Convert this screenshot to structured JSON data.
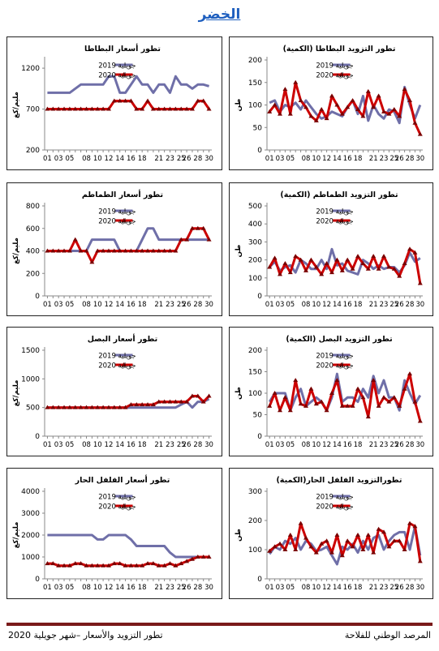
{
  "page": {
    "title": "الخضر",
    "footer_left": "تطور التزويد والأسعار –شهر جويلية 2020",
    "footer_right": "المرصد الوطني للفلاحة"
  },
  "colors": {
    "s2019": "#6f6fa8",
    "s2020": "#cc0000",
    "marker2020": "#7a0000"
  },
  "chart_data": [
    {
      "id": "potato-supply",
      "type": "line",
      "title": "تطور التزويد البطاطا (الكمية)",
      "ylabel": "طن",
      "ylim": [
        0,
        200
      ],
      "yticks": [
        0,
        50,
        100,
        150,
        200
      ],
      "categories": [
        "01",
        "02",
        "03",
        "04",
        "05",
        "06",
        "07",
        "08",
        "09",
        "10",
        "11",
        "12",
        "13",
        "14",
        "15",
        "16",
        "17",
        "18",
        "19",
        "20",
        "21",
        "22",
        "23",
        "24",
        "25",
        "26",
        "27",
        "28",
        "29",
        "30"
      ],
      "xticks": [
        "01",
        "03",
        "05",
        "08",
        "10",
        "12",
        "14",
        "16",
        "18",
        "21",
        "23",
        "25",
        "26",
        "28",
        "30"
      ],
      "series": [
        {
          "name": "جويلية 2019",
          "values": [
            105,
            110,
            85,
            100,
            95,
            105,
            90,
            110,
            95,
            80,
            70,
            75,
            85,
            80,
            75,
            95,
            110,
            80,
            120,
            65,
            100,
            80,
            70,
            90,
            85,
            60,
            140,
            100,
            70,
            100
          ]
        },
        {
          "name": "جويلية 2020",
          "values": [
            85,
            100,
            80,
            135,
            80,
            150,
            110,
            95,
            75,
            65,
            90,
            70,
            120,
            100,
            80,
            95,
            110,
            90,
            75,
            130,
            95,
            120,
            85,
            80,
            90,
            75,
            135,
            110,
            60,
            35
          ]
        }
      ]
    },
    {
      "id": "potato-price",
      "type": "line",
      "title": "تطور أسعار البطاطا",
      "ylabel": "مليم/كغ",
      "ylim": [
        200,
        1300
      ],
      "yticks": [
        200,
        700,
        1200
      ],
      "categories": [
        "01",
        "02",
        "03",
        "04",
        "05",
        "06",
        "07",
        "08",
        "09",
        "10",
        "11",
        "12",
        "13",
        "14",
        "15",
        "16",
        "17",
        "18",
        "19",
        "20",
        "21",
        "22",
        "23",
        "24",
        "25",
        "26",
        "27",
        "28",
        "29",
        "30"
      ],
      "xticks": [
        "01",
        "03",
        "05",
        "08",
        "10",
        "12",
        "14",
        "16",
        "18",
        "21",
        "23",
        "25",
        "26",
        "28",
        "30"
      ],
      "series": [
        {
          "name": "جويلية 2019",
          "values": [
            900,
            900,
            900,
            900,
            900,
            950,
            1000,
            1000,
            1000,
            1000,
            1000,
            1100,
            1100,
            900,
            900,
            1000,
            1100,
            1000,
            1000,
            900,
            1000,
            1000,
            900,
            1100,
            1000,
            1000,
            950,
            1000,
            1000,
            980
          ]
        },
        {
          "name": "جويلية 2020",
          "values": [
            700,
            700,
            700,
            700,
            700,
            700,
            700,
            700,
            700,
            700,
            700,
            700,
            800,
            800,
            800,
            800,
            700,
            700,
            800,
            700,
            700,
            700,
            700,
            700,
            700,
            700,
            700,
            800,
            800,
            700
          ]
        }
      ]
    },
    {
      "id": "tomato-supply",
      "type": "line",
      "title": "تطور التزويد الطماطم (الكمية)",
      "ylabel": "طن",
      "ylim": [
        0,
        500
      ],
      "yticks": [
        0,
        100,
        200,
        300,
        400,
        500
      ],
      "categories": [
        "01",
        "02",
        "03",
        "04",
        "05",
        "06",
        "07",
        "08",
        "09",
        "10",
        "11",
        "12",
        "13",
        "14",
        "15",
        "16",
        "17",
        "18",
        "19",
        "20",
        "21",
        "22",
        "23",
        "24",
        "25",
        "26",
        "27",
        "28",
        "29",
        "30"
      ],
      "xticks": [
        "01",
        "03",
        "05",
        "08",
        "10",
        "12",
        "14",
        "16",
        "18",
        "21",
        "23",
        "25",
        "26",
        "28",
        "30"
      ],
      "series": [
        {
          "name": "جويلية 2019",
          "values": [
            160,
            190,
            140,
            160,
            170,
            130,
            200,
            180,
            150,
            150,
            200,
            150,
            260,
            170,
            180,
            140,
            130,
            120,
            200,
            180,
            150,
            170,
            150,
            160,
            160,
            130,
            170,
            240,
            190,
            210
          ]
        },
        {
          "name": "جويلية 2020",
          "values": [
            160,
            210,
            120,
            180,
            130,
            220,
            200,
            140,
            200,
            160,
            120,
            180,
            130,
            200,
            140,
            200,
            150,
            220,
            180,
            150,
            220,
            150,
            220,
            160,
            150,
            110,
            180,
            260,
            240,
            70
          ]
        }
      ]
    },
    {
      "id": "tomato-price",
      "type": "line",
      "title": "تطور أسعار الطماطم",
      "ylabel": "مليم/كغ",
      "ylim": [
        0,
        800
      ],
      "yticks": [
        0,
        200,
        400,
        600,
        800
      ],
      "categories": [
        "01",
        "02",
        "03",
        "04",
        "05",
        "06",
        "07",
        "08",
        "09",
        "10",
        "11",
        "12",
        "13",
        "14",
        "15",
        "16",
        "17",
        "18",
        "19",
        "20",
        "21",
        "22",
        "23",
        "24",
        "25",
        "26",
        "27",
        "28",
        "29",
        "30"
      ],
      "xticks": [
        "01",
        "03",
        "05",
        "08",
        "10",
        "12",
        "14",
        "16",
        "18",
        "21",
        "23",
        "25",
        "26",
        "28",
        "30"
      ],
      "series": [
        {
          "name": "جويلية 2019",
          "values": [
            400,
            400,
            400,
            400,
            400,
            400,
            400,
            400,
            500,
            500,
            500,
            500,
            500,
            400,
            400,
            400,
            400,
            500,
            600,
            600,
            500,
            500,
            500,
            500,
            500,
            500,
            500,
            500,
            500,
            500
          ]
        },
        {
          "name": "جويلية 2020",
          "values": [
            400,
            400,
            400,
            400,
            400,
            500,
            400,
            400,
            300,
            400,
            400,
            400,
            400,
            400,
            400,
            400,
            400,
            400,
            400,
            400,
            400,
            400,
            400,
            400,
            500,
            500,
            600,
            600,
            600,
            500
          ]
        }
      ]
    },
    {
      "id": "onion-supply",
      "type": "line",
      "title": "تطور التزويد البصل (الكمية)",
      "ylabel": "طن",
      "ylim": [
        0,
        200
      ],
      "yticks": [
        0,
        50,
        100,
        150,
        200
      ],
      "categories": [
        "01",
        "02",
        "03",
        "04",
        "05",
        "06",
        "07",
        "08",
        "09",
        "10",
        "11",
        "12",
        "13",
        "14",
        "15",
        "16",
        "17",
        "18",
        "19",
        "20",
        "21",
        "22",
        "23",
        "24",
        "25",
        "26",
        "27",
        "28",
        "29",
        "30"
      ],
      "xticks": [
        "01",
        "03",
        "05",
        "08",
        "10",
        "12",
        "14",
        "16",
        "18",
        "21",
        "23",
        "25",
        "26",
        "28",
        "30"
      ],
      "series": [
        {
          "name": "جويلية 2019",
          "values": [
            80,
            100,
            100,
            100,
            60,
            90,
            110,
            70,
            80,
            90,
            80,
            60,
            90,
            145,
            80,
            90,
            90,
            80,
            110,
            90,
            140,
            100,
            130,
            90,
            90,
            60,
            130,
            100,
            75,
            95
          ]
        },
        {
          "name": "جويلية 2020",
          "values": [
            70,
            100,
            60,
            90,
            60,
            130,
            75,
            70,
            110,
            75,
            80,
            60,
            100,
            130,
            70,
            70,
            70,
            110,
            90,
            45,
            130,
            70,
            90,
            80,
            90,
            70,
            110,
            145,
            80,
            35
          ]
        }
      ]
    },
    {
      "id": "onion-price",
      "type": "line",
      "title": "تطور أسعار البصل",
      "ylabel": "مليم/كغ",
      "ylim": [
        0,
        1500
      ],
      "yticks": [
        0,
        500,
        1000,
        1500
      ],
      "categories": [
        "01",
        "02",
        "03",
        "04",
        "05",
        "06",
        "07",
        "08",
        "09",
        "10",
        "11",
        "12",
        "13",
        "14",
        "15",
        "16",
        "17",
        "18",
        "19",
        "20",
        "21",
        "22",
        "23",
        "24",
        "25",
        "26",
        "27",
        "28",
        "29",
        "30"
      ],
      "xticks": [
        "01",
        "03",
        "05",
        "08",
        "10",
        "12",
        "14",
        "16",
        "18",
        "21",
        "23",
        "25",
        "26",
        "28",
        "30"
      ],
      "series": [
        {
          "name": "جويلية 2019",
          "values": [
            500,
            500,
            500,
            500,
            500,
            500,
            500,
            500,
            500,
            500,
            500,
            500,
            500,
            500,
            500,
            500,
            500,
            500,
            500,
            500,
            500,
            500,
            500,
            500,
            550,
            600,
            500,
            600,
            600,
            650
          ]
        },
        {
          "name": "جويلية 2020",
          "values": [
            500,
            500,
            500,
            500,
            500,
            500,
            500,
            500,
            500,
            500,
            500,
            500,
            500,
            500,
            500,
            550,
            550,
            550,
            550,
            550,
            600,
            600,
            600,
            600,
            600,
            600,
            700,
            700,
            600,
            700
          ]
        }
      ]
    },
    {
      "id": "pepper-supply",
      "type": "line",
      "title": "تطورالتزويد الفلفل الحار(الكمية)",
      "ylabel": "طن",
      "ylim": [
        0,
        300
      ],
      "yticks": [
        0,
        100,
        200,
        300
      ],
      "categories": [
        "01",
        "02",
        "03",
        "04",
        "05",
        "06",
        "07",
        "08",
        "09",
        "10",
        "11",
        "12",
        "13",
        "14",
        "15",
        "16",
        "17",
        "18",
        "19",
        "20",
        "21",
        "22",
        "23",
        "24",
        "25",
        "26",
        "27",
        "28",
        "29",
        "30"
      ],
      "xticks": [
        "01",
        "03",
        "05",
        "08",
        "10",
        "12",
        "14",
        "16",
        "18",
        "21",
        "23",
        "25",
        "26",
        "28",
        "30"
      ],
      "series": [
        {
          "name": "جويلية 2019",
          "values": [
            85,
            110,
            100,
            130,
            120,
            140,
            100,
            130,
            120,
            95,
            100,
            110,
            80,
            50,
            110,
            100,
            120,
            90,
            130,
            100,
            140,
            150,
            100,
            130,
            150,
            160,
            160,
            100,
            180,
            80
          ]
        },
        {
          "name": "جويلية 2020",
          "values": [
            95,
            110,
            120,
            100,
            150,
            100,
            190,
            140,
            110,
            90,
            120,
            130,
            90,
            150,
            80,
            130,
            110,
            150,
            100,
            150,
            90,
            170,
            160,
            110,
            130,
            130,
            100,
            190,
            180,
            60
          ]
        }
      ]
    },
    {
      "id": "pepper-price",
      "type": "line",
      "title": "تطور أسعار الفلفل الحار",
      "ylabel": "مليم/كغ",
      "ylim": [
        0,
        4000
      ],
      "yticks": [
        0,
        1000,
        2000,
        3000,
        4000
      ],
      "categories": [
        "01",
        "02",
        "03",
        "04",
        "05",
        "06",
        "07",
        "08",
        "09",
        "10",
        "11",
        "12",
        "13",
        "14",
        "15",
        "16",
        "17",
        "18",
        "19",
        "20",
        "21",
        "22",
        "23",
        "24",
        "25",
        "26",
        "27",
        "28",
        "29",
        "30"
      ],
      "xticks": [
        "01",
        "03",
        "05",
        "08",
        "10",
        "12",
        "14",
        "16",
        "18",
        "21",
        "23",
        "25",
        "26",
        "28",
        "30"
      ],
      "series": [
        {
          "name": "جويلية 2019",
          "values": [
            2000,
            2000,
            2000,
            2000,
            2000,
            2000,
            2000,
            2000,
            2000,
            1800,
            1800,
            2000,
            2000,
            2000,
            2000,
            1800,
            1500,
            1500,
            1500,
            1500,
            1500,
            1500,
            1200,
            1000,
            1000,
            1000,
            1000,
            1000,
            1000,
            1000
          ]
        },
        {
          "name": "جويلية 2020",
          "values": [
            700,
            700,
            600,
            600,
            600,
            700,
            700,
            600,
            600,
            600,
            600,
            600,
            700,
            700,
            600,
            600,
            600,
            600,
            700,
            700,
            600,
            600,
            700,
            600,
            700,
            800,
            900,
            1000,
            1000,
            1000
          ]
        }
      ]
    }
  ]
}
